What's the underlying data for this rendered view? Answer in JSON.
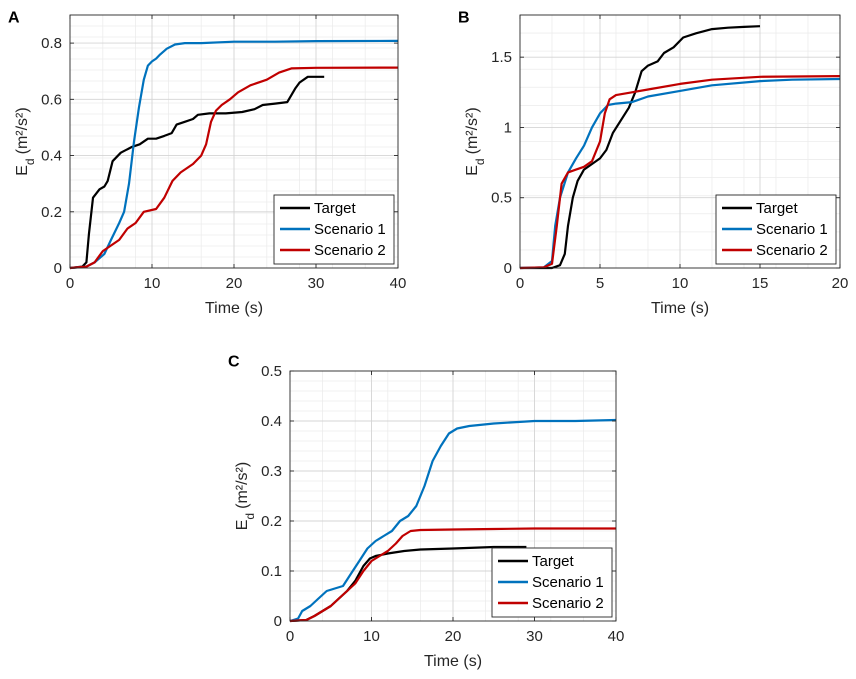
{
  "chart_data": [
    {
      "type": "line",
      "panel": "A",
      "xlabel": "Time (s)",
      "ylabel": "E",
      "ylabel_sub": "d",
      "ylabel_units": "(m²/s²)",
      "xlim": [
        0,
        40
      ],
      "ylim": [
        0,
        0.9
      ],
      "xticks": [
        0,
        10,
        20,
        30,
        40
      ],
      "yticks": [
        0,
        0.2,
        0.4,
        0.6,
        0.8
      ],
      "xtick_labels": [
        "0",
        "10",
        "20",
        "30",
        "40"
      ],
      "ytick_labels": [
        "0",
        "0.2",
        "0.4",
        "0.6",
        "0.8"
      ],
      "grid": true,
      "legend_position": "bottom-right",
      "series": [
        {
          "name": "Target",
          "color": "#000000",
          "x": [
            0,
            1.5,
            2.0,
            2.3,
            2.8,
            3.6,
            4.2,
            4.6,
            5.2,
            6.2,
            7.5,
            8.5,
            9.5,
            10.5,
            11.5,
            12.4,
            13.0,
            14.0,
            15.0,
            15.6,
            17.0,
            19.0,
            21.0,
            22.5,
            23.5,
            25.0,
            26.5,
            27.5,
            28.0,
            29.0,
            31.0
          ],
          "y": [
            0,
            0.005,
            0.02,
            0.12,
            0.25,
            0.28,
            0.29,
            0.31,
            0.38,
            0.41,
            0.43,
            0.44,
            0.46,
            0.46,
            0.47,
            0.48,
            0.51,
            0.52,
            0.53,
            0.545,
            0.55,
            0.55,
            0.555,
            0.565,
            0.58,
            0.585,
            0.59,
            0.64,
            0.66,
            0.68,
            0.68
          ]
        },
        {
          "name": "Scenario 1",
          "color": "#0072BD",
          "x": [
            0,
            2.0,
            3.0,
            4.2,
            5.0,
            6.0,
            6.6,
            7.2,
            7.8,
            8.4,
            9.0,
            9.5,
            10.0,
            10.5,
            11.0,
            11.8,
            12.8,
            14.0,
            16.0,
            20.0,
            25.0,
            30.0,
            40.0
          ],
          "y": [
            0,
            0.005,
            0.02,
            0.05,
            0.1,
            0.16,
            0.2,
            0.3,
            0.45,
            0.57,
            0.67,
            0.72,
            0.735,
            0.745,
            0.76,
            0.78,
            0.795,
            0.8,
            0.8,
            0.805,
            0.805,
            0.807,
            0.808
          ]
        },
        {
          "name": "Scenario 2",
          "color": "#C00000",
          "x": [
            0,
            2.0,
            3.0,
            4.0,
            5.0,
            6.0,
            7.0,
            8.0,
            9.0,
            10.5,
            11.5,
            12.5,
            13.5,
            15.0,
            16.0,
            16.6,
            17.2,
            17.8,
            18.5,
            19.5,
            20.5,
            22.0,
            24.0,
            25.5,
            27.0,
            30.0,
            40.0
          ],
          "y": [
            0,
            0.005,
            0.02,
            0.06,
            0.08,
            0.1,
            0.14,
            0.16,
            0.2,
            0.21,
            0.25,
            0.31,
            0.34,
            0.37,
            0.4,
            0.44,
            0.52,
            0.56,
            0.58,
            0.6,
            0.625,
            0.65,
            0.67,
            0.695,
            0.71,
            0.712,
            0.713
          ]
        }
      ]
    },
    {
      "type": "line",
      "panel": "B",
      "xlabel": "Time (s)",
      "ylabel": "E",
      "ylabel_sub": "d",
      "ylabel_units": "(m²/s²)",
      "xlim": [
        0,
        20
      ],
      "ylim": [
        0,
        1.8
      ],
      "xticks": [
        0,
        5,
        10,
        15,
        20
      ],
      "yticks": [
        0,
        0.5,
        1.0,
        1.5
      ],
      "xtick_labels": [
        "0",
        "5",
        "10",
        "15",
        "20"
      ],
      "ytick_labels": [
        "0",
        "0.5",
        "1",
        "1.5"
      ],
      "grid": true,
      "legend_position": "bottom-right",
      "series": [
        {
          "name": "Target",
          "color": "#000000",
          "x": [
            0,
            2.0,
            2.5,
            2.8,
            3.0,
            3.3,
            3.6,
            4.0,
            4.5,
            5.0,
            5.4,
            5.8,
            6.3,
            6.8,
            7.2,
            7.6,
            8.0,
            8.6,
            9.0,
            9.6,
            10.2,
            11.0,
            12.0,
            13.0,
            14.0,
            15.0
          ],
          "y": [
            0,
            0.0,
            0.02,
            0.1,
            0.3,
            0.5,
            0.62,
            0.7,
            0.74,
            0.78,
            0.84,
            0.96,
            1.05,
            1.14,
            1.25,
            1.4,
            1.44,
            1.47,
            1.53,
            1.57,
            1.64,
            1.67,
            1.7,
            1.71,
            1.715,
            1.72
          ]
        },
        {
          "name": "Scenario 1",
          "color": "#0072BD",
          "x": [
            0,
            1.5,
            2.0,
            2.2,
            2.5,
            3.0,
            3.5,
            4.0,
            4.5,
            5.0,
            5.5,
            6.0,
            7.0,
            8.0,
            10.0,
            12.0,
            15.0,
            17.0,
            20.0
          ],
          "y": [
            0,
            0.005,
            0.05,
            0.3,
            0.5,
            0.68,
            0.78,
            0.87,
            1.0,
            1.1,
            1.16,
            1.17,
            1.18,
            1.22,
            1.26,
            1.3,
            1.33,
            1.34,
            1.345
          ]
        },
        {
          "name": "Scenario 2",
          "color": "#C00000",
          "x": [
            0,
            1.5,
            2.0,
            2.3,
            2.6,
            3.0,
            3.5,
            4.0,
            4.5,
            5.0,
            5.3,
            5.6,
            6.0,
            7.0,
            8.0,
            10.0,
            12.0,
            15.0,
            20.0
          ],
          "y": [
            0,
            0.005,
            0.03,
            0.3,
            0.6,
            0.68,
            0.7,
            0.72,
            0.76,
            0.9,
            1.1,
            1.2,
            1.23,
            1.25,
            1.27,
            1.31,
            1.34,
            1.36,
            1.365
          ]
        }
      ]
    },
    {
      "type": "line",
      "panel": "C",
      "xlabel": "Time (s)",
      "ylabel": "E",
      "ylabel_sub": "d",
      "ylabel_units": "(m²/s²)",
      "xlim": [
        0,
        40
      ],
      "ylim": [
        0,
        0.5
      ],
      "xticks": [
        0,
        10,
        20,
        30,
        40
      ],
      "yticks": [
        0,
        0.1,
        0.2,
        0.3,
        0.4,
        0.5
      ],
      "xtick_labels": [
        "0",
        "10",
        "20",
        "30",
        "40"
      ],
      "ytick_labels": [
        "0",
        "0.1",
        "0.2",
        "0.3",
        "0.4",
        "0.5"
      ],
      "grid": true,
      "legend_position": "bottom-right",
      "series": [
        {
          "name": "Target",
          "color": "#000000",
          "x": [
            0,
            2.0,
            3.0,
            4.0,
            5.0,
            6.0,
            7.0,
            8.0,
            9.0,
            9.8,
            10.5,
            12.0,
            14.0,
            16.0,
            20.0,
            25.0,
            28.0,
            29.0
          ],
          "y": [
            0,
            0.002,
            0.01,
            0.02,
            0.03,
            0.045,
            0.06,
            0.08,
            0.11,
            0.125,
            0.13,
            0.135,
            0.14,
            0.143,
            0.145,
            0.148,
            0.148,
            0.148
          ]
        },
        {
          "name": "Scenario 1",
          "color": "#0072BD",
          "x": [
            0,
            1.0,
            1.5,
            2.5,
            3.5,
            4.5,
            5.5,
            6.5,
            7.5,
            8.5,
            9.5,
            10.5,
            11.5,
            12.5,
            13.5,
            14.5,
            15.5,
            16.5,
            17.5,
            18.5,
            19.5,
            20.5,
            22.0,
            25.0,
            30.0,
            35.0,
            40.0
          ],
          "y": [
            0,
            0.005,
            0.02,
            0.03,
            0.045,
            0.06,
            0.065,
            0.07,
            0.095,
            0.12,
            0.145,
            0.16,
            0.17,
            0.18,
            0.2,
            0.21,
            0.23,
            0.27,
            0.32,
            0.35,
            0.375,
            0.385,
            0.39,
            0.395,
            0.4,
            0.4,
            0.402
          ]
        },
        {
          "name": "Scenario 2",
          "color": "#C00000",
          "x": [
            0,
            2.0,
            3.0,
            4.0,
            5.0,
            6.0,
            7.0,
            8.0,
            9.0,
            10.0,
            11.0,
            12.0,
            13.0,
            13.8,
            14.8,
            16.0,
            20.0,
            25.0,
            30.0,
            40.0
          ],
          "y": [
            0,
            0.002,
            0.01,
            0.02,
            0.03,
            0.045,
            0.06,
            0.075,
            0.1,
            0.12,
            0.13,
            0.14,
            0.155,
            0.17,
            0.18,
            0.182,
            0.183,
            0.184,
            0.185,
            0.185
          ]
        }
      ]
    }
  ]
}
